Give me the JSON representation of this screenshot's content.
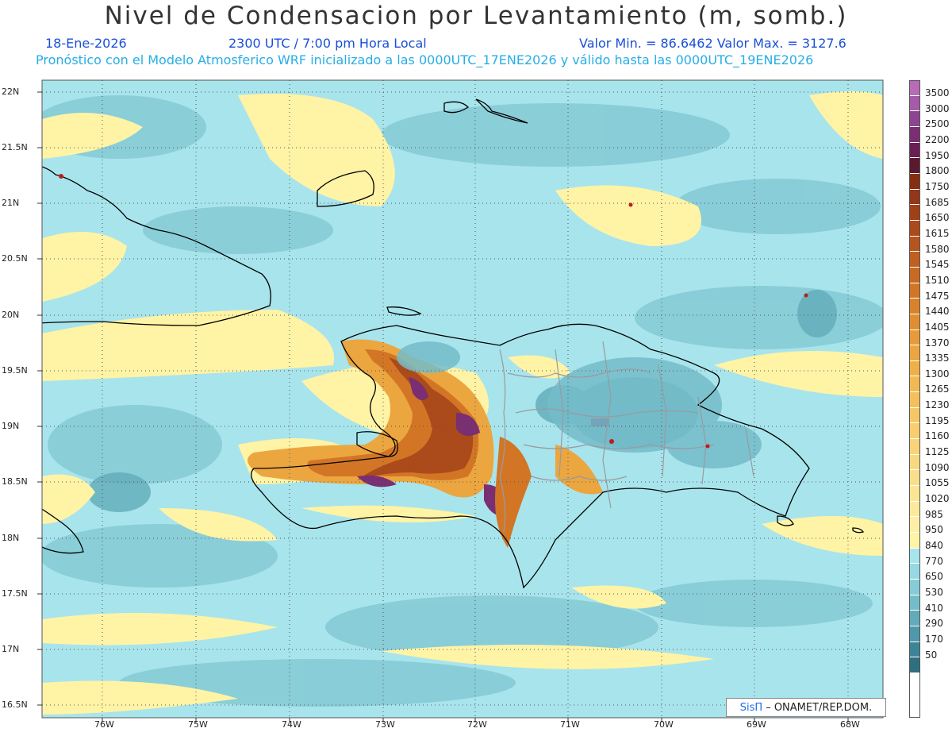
{
  "header": {
    "title": "Nivel de Condensacion por Levantamiento (m, somb.)",
    "date": "18-Ene-2026",
    "time": "2300 UTC / 7:00 pm Hora Local",
    "min_max": "Valor Min. = 86.6462  Valor Max. = 3127.6",
    "forecast_info": "Pronóstico con el Modelo Atmosferico WRF inicializado a las 0000UTC_17ENE2026 y válido hasta las  0000UTC_19ENE2026"
  },
  "map": {
    "lat_labels": [
      "22N",
      "21.5N",
      "21N",
      "20.5N",
      "20N",
      "19.5N",
      "19N",
      "18.5N",
      "18N",
      "17.5N",
      "17N",
      "16.5N"
    ],
    "lon_labels": [
      "76W",
      "75W",
      "74W",
      "73W",
      "72W",
      "71W",
      "70W",
      "69W",
      "68W"
    ]
  },
  "colorbar": {
    "entries": [
      {
        "label": "3500",
        "color": "#b86bb6"
      },
      {
        "label": "3000",
        "color": "#a45ba8"
      },
      {
        "label": "2500",
        "color": "#8c4591"
      },
      {
        "label": "2200",
        "color": "#7a2f72"
      },
      {
        "label": "1950",
        "color": "#6a1f52"
      },
      {
        "label": "1800",
        "color": "#5a1a2e"
      },
      {
        "label": "1750",
        "color": "#862e12"
      },
      {
        "label": "1685",
        "color": "#93361a"
      },
      {
        "label": "1650",
        "color": "#9f4017"
      },
      {
        "label": "1615",
        "color": "#ab4a1a"
      },
      {
        "label": "1580",
        "color": "#b5541d"
      },
      {
        "label": "1545",
        "color": "#bf5f20"
      },
      {
        "label": "1510",
        "color": "#c86a22"
      },
      {
        "label": "1475",
        "color": "#d27626"
      },
      {
        "label": "1440",
        "color": "#d9822b"
      },
      {
        "label": "1405",
        "color": "#e08e31"
      },
      {
        "label": "1370",
        "color": "#e69a38"
      },
      {
        "label": "1335",
        "color": "#eba640"
      },
      {
        "label": "1300",
        "color": "#efb048"
      },
      {
        "label": "1265",
        "color": "#f2b952"
      },
      {
        "label": "1230",
        "color": "#f4c05b"
      },
      {
        "label": "1195",
        "color": "#f6c865"
      },
      {
        "label": "1160",
        "color": "#f7cd6e"
      },
      {
        "label": "1125",
        "color": "#f8d377"
      },
      {
        "label": "1090",
        "color": "#f9d980"
      },
      {
        "label": "1055",
        "color": "#fadf8a"
      },
      {
        "label": "1020",
        "color": "#fbe593"
      },
      {
        "label": "985",
        "color": "#fcea9c"
      },
      {
        "label": "950",
        "color": "#fdefa4"
      },
      {
        "label": "840",
        "color": "#fff3a6"
      },
      {
        "label": "770",
        "color": "#a8e4ec"
      },
      {
        "label": "650",
        "color": "#97d8e2"
      },
      {
        "label": "530",
        "color": "#86cbd6"
      },
      {
        "label": "410",
        "color": "#74bcc9"
      },
      {
        "label": "290",
        "color": "#62abba"
      },
      {
        "label": "170",
        "color": "#4f98a9"
      },
      {
        "label": "50",
        "color": "#3c8496"
      },
      {
        "label": "",
        "color": "#2e6f80"
      }
    ]
  },
  "credit": {
    "logo_text": "SisΠ",
    "text": "– ONAMET/REP.DOM."
  }
}
